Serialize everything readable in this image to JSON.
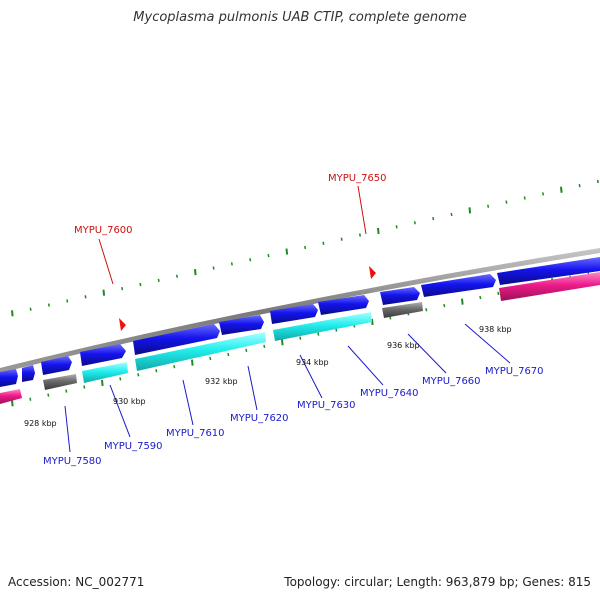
{
  "title": "Mycoplasma pulmonis UAB CTIP, complete genome",
  "footer": {
    "accession": "Accession: NC_002771",
    "stats": "Topology: circular; Length: 963,879 bp; Genes: 815"
  },
  "colors": {
    "backbone": "#8a8a8a",
    "forward_cds": "#1010e8",
    "reverse_cds": "#1010e8",
    "cyan_feature": "#22eeee",
    "grey_feature": "#6a6a6a",
    "pink_feature": "#ee1a8a",
    "tick_marks": "#1f8a1f",
    "label_blue": "#1a1acc",
    "label_red": "#cc1111"
  },
  "kbp_labels": [
    "928 kbp",
    "930 kbp",
    "932 kbp",
    "934 kbp",
    "936 kbp",
    "938 kbp"
  ],
  "gene_labels_blue": [
    "MYPU_7580",
    "MYPU_7590",
    "MYPU_7610",
    "MYPU_7620",
    "MYPU_7630",
    "MYPU_7640",
    "MYPU_7660",
    "MYPU_7670"
  ],
  "gene_labels_red": [
    "MYPU_7600",
    "MYPU_7650"
  ]
}
